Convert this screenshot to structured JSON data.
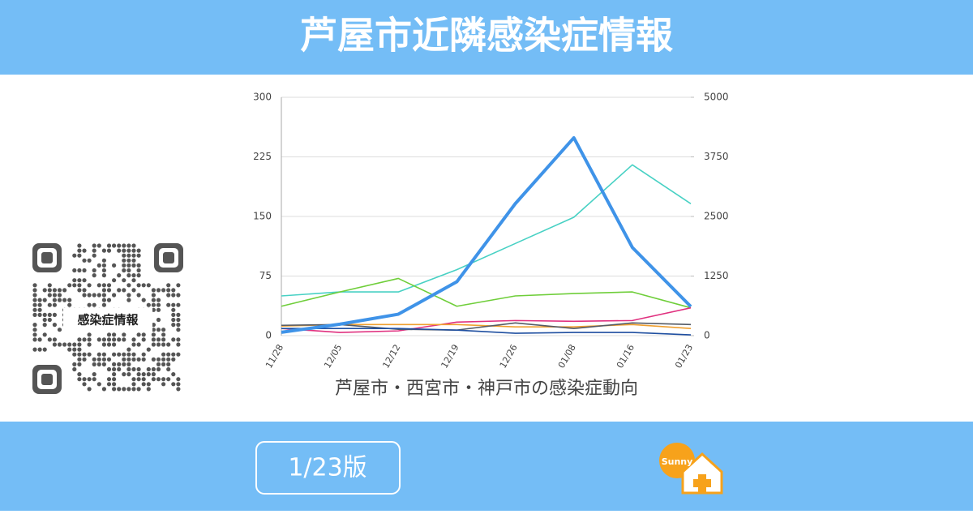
{
  "header": {
    "title": "芦屋市近隣感染症情報"
  },
  "qr": {
    "label": "感染症情報"
  },
  "footer": {
    "edition": "1/23版",
    "logo": "Sunny"
  },
  "chart_data": {
    "type": "line",
    "title": "芦屋市・西宮市・神戸市の感染症動向",
    "categories": [
      "11/28",
      "12/05",
      "12/12",
      "12/19",
      "12/26",
      "01/08",
      "01/16",
      "01/23"
    ],
    "ylim": [
      0,
      300
    ],
    "yticks": [
      0,
      75,
      150,
      225,
      300
    ],
    "y2lim": [
      0,
      5000
    ],
    "y2ticks": [
      0,
      1250,
      2500,
      3750,
      5000
    ],
    "grid": true,
    "series": [
      {
        "color": "#48d1c4",
        "values": [
          50,
          55,
          55,
          83,
          116,
          149,
          215,
          166
        ]
      },
      {
        "color": "#6fce3a",
        "values": [
          37,
          55,
          72,
          37,
          50,
          53,
          55,
          35
        ]
      },
      {
        "color": "#e0307f",
        "values": [
          9,
          4,
          6,
          17,
          19,
          18,
          19,
          35
        ]
      },
      {
        "color": "#f0a030",
        "values": [
          12,
          14,
          14,
          14,
          11,
          11,
          14,
          9
        ]
      },
      {
        "color": "#555b66",
        "values": [
          13,
          14,
          8,
          7,
          16,
          9,
          16,
          14
        ]
      },
      {
        "color": "#1f4fa0",
        "values": [
          9,
          9,
          9,
          7,
          3,
          4,
          4,
          1
        ]
      },
      {
        "color": "#3f93e8",
        "axis": "y2",
        "width": 4,
        "values": [
          70,
          240,
          450,
          1130,
          2770,
          4150,
          1850,
          610
        ]
      }
    ]
  }
}
